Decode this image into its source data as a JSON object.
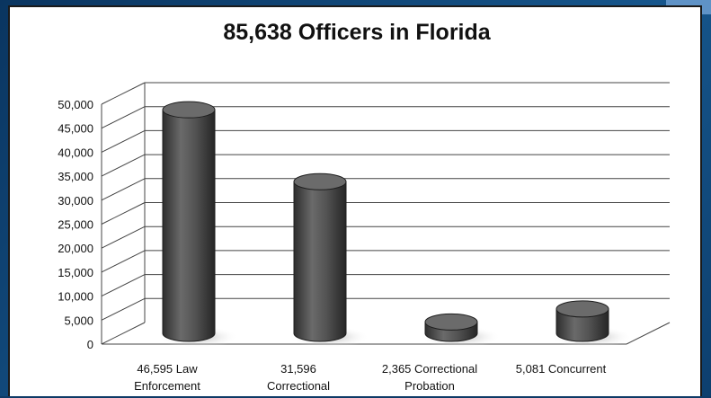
{
  "chart_data": {
    "type": "bar",
    "title": "85,638 Officers in Florida",
    "categories": [
      [
        "46,595 Law",
        "Enforcement"
      ],
      [
        "31,596",
        "Correctional"
      ],
      [
        "2,365 Correctional",
        "Probation"
      ],
      [
        "5,081 Concurrent"
      ]
    ],
    "values": [
      46595,
      31596,
      2365,
      5081
    ],
    "ylim": [
      0,
      50000
    ],
    "yticks": [
      "0",
      "5,000",
      "10,000",
      "15,000",
      "20,000",
      "25,000",
      "30,000",
      "35,000",
      "40,000",
      "45,000",
      "50,000"
    ],
    "grid": true,
    "legend": "none",
    "colors": {
      "bar": "#4a4a4a",
      "bar_top": "#6b6b6b",
      "grid": "#444444",
      "panel_border": "#1a1a1a"
    }
  }
}
